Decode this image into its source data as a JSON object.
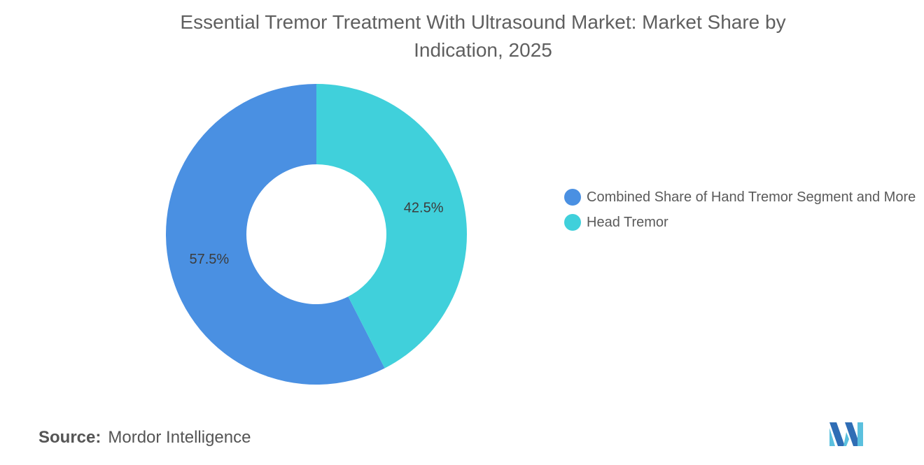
{
  "chart_data": {
    "type": "donut",
    "title": "Essential Tremor Treatment With Ultrasound Market: Market Share by Indication, 2025",
    "categories": [
      "Combined Share of Hand Tremor Segment and More",
      "Head Tremor"
    ],
    "values": [
      57.5,
      42.5
    ],
    "value_labels": [
      "57.5%",
      "42.5%"
    ],
    "colors": [
      "#4a90e2",
      "#40d0db"
    ],
    "source_label": "Source:",
    "source": "Mordor Intelligence"
  }
}
